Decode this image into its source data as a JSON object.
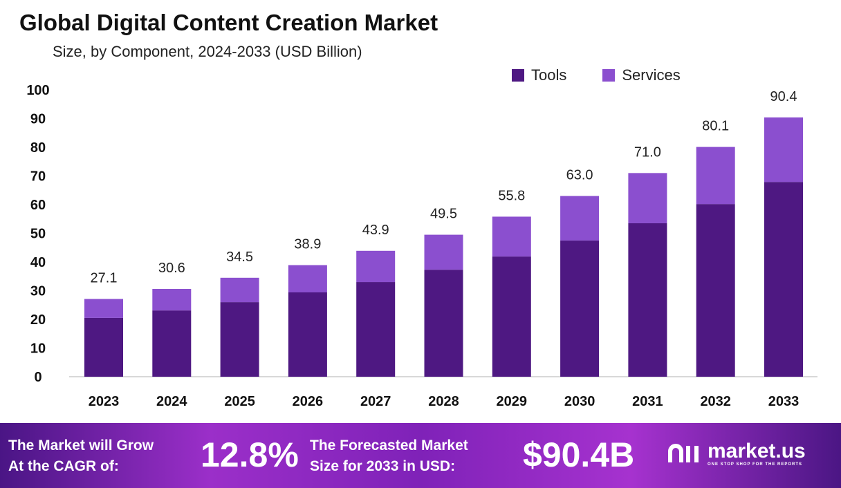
{
  "chart_data": {
    "type": "bar",
    "stacked": true,
    "title": "Global Digital Content Creation Market",
    "subtitle": "Size, by Component, 2024-2033 (USD Billion)",
    "categories": [
      "2023",
      "2024",
      "2025",
      "2026",
      "2027",
      "2028",
      "2029",
      "2030",
      "2031",
      "2032",
      "2033"
    ],
    "series": [
      {
        "name": "Tools",
        "color": "#4e1882",
        "values": [
          20.5,
          23.1,
          26.0,
          29.4,
          33.0,
          37.3,
          41.9,
          47.5,
          53.5,
          60.2,
          67.9
        ]
      },
      {
        "name": "Services",
        "color": "#8b4fcf",
        "values": [
          6.6,
          7.5,
          8.5,
          9.5,
          10.9,
          12.2,
          13.9,
          15.5,
          17.5,
          19.9,
          22.5
        ]
      }
    ],
    "totals": [
      "27.1",
      "30.6",
      "34.5",
      "38.9",
      "43.9",
      "49.5",
      "55.8",
      "63.0",
      "71.0",
      "80.1",
      "90.4"
    ],
    "yticks": [
      "0",
      "10",
      "20",
      "30",
      "40",
      "50",
      "60",
      "70",
      "80",
      "90",
      "100"
    ],
    "ylim": [
      0,
      100
    ],
    "grid": false,
    "legend": "top-right"
  },
  "footer": {
    "cagr_label_1": "The Market will Grow",
    "cagr_label_2": "At the CAGR of:",
    "cagr_value": "12.8%",
    "forecast_label_1": "The Forecasted Market",
    "forecast_label_2": "Size for 2033 in USD:",
    "forecast_value": "$90.4B",
    "logo_text": "market.us",
    "logo_tagline": "ONE STOP SHOP FOR THE REPORTS"
  }
}
